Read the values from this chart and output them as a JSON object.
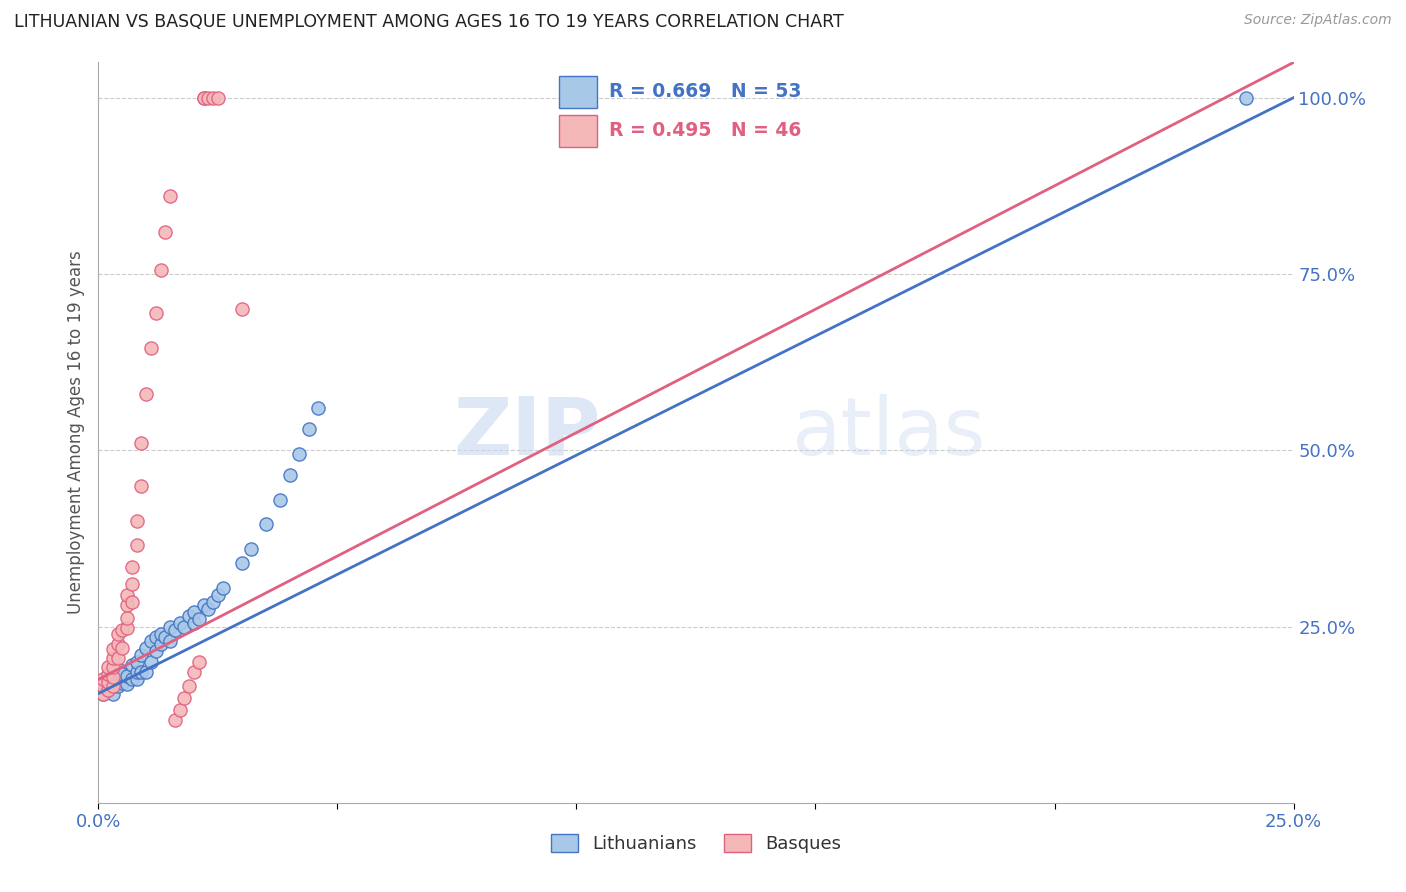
{
  "title": "LITHUANIAN VS BASQUE UNEMPLOYMENT AMONG AGES 16 TO 19 YEARS CORRELATION CHART",
  "source": "Source: ZipAtlas.com",
  "ylabel": "Unemployment Among Ages 16 to 19 years",
  "xlim": [
    0.0,
    0.25
  ],
  "ylim": [
    0.0,
    1.05
  ],
  "x_ticks": [
    0.0,
    0.05,
    0.1,
    0.15,
    0.2,
    0.25
  ],
  "x_tick_labels": [
    "0.0%",
    "",
    "",
    "",
    "",
    "25.0%"
  ],
  "y_ticks": [
    0.25,
    0.5,
    0.75,
    1.0
  ],
  "y_tick_labels": [
    "25.0%",
    "50.0%",
    "75.0%",
    "100.0%"
  ],
  "watermark_zip": "ZIP",
  "watermark_atlas": "atlas",
  "legend_blue_R": "R = 0.669",
  "legend_blue_N": "N = 53",
  "legend_pink_R": "R = 0.495",
  "legend_pink_N": "N = 46",
  "blue_color": "#a8c8e8",
  "pink_color": "#f4b8b8",
  "blue_line_color": "#4472c4",
  "pink_line_color": "#e06080",
  "title_color": "#222222",
  "axis_label_color": "#4472c4",
  "grid_color": "#cccccc",
  "blue_scatter_x": [
    0.001,
    0.001,
    0.002,
    0.002,
    0.003,
    0.003,
    0.003,
    0.004,
    0.004,
    0.004,
    0.005,
    0.005,
    0.006,
    0.006,
    0.007,
    0.007,
    0.008,
    0.008,
    0.008,
    0.009,
    0.009,
    0.01,
    0.01,
    0.011,
    0.011,
    0.012,
    0.012,
    0.013,
    0.013,
    0.014,
    0.015,
    0.015,
    0.016,
    0.017,
    0.018,
    0.019,
    0.02,
    0.02,
    0.021,
    0.022,
    0.023,
    0.024,
    0.025,
    0.026,
    0.03,
    0.032,
    0.035,
    0.038,
    0.04,
    0.042,
    0.044,
    0.046,
    0.24
  ],
  "blue_scatter_y": [
    0.155,
    0.17,
    0.16,
    0.175,
    0.155,
    0.165,
    0.18,
    0.165,
    0.178,
    0.19,
    0.17,
    0.182,
    0.168,
    0.18,
    0.175,
    0.195,
    0.175,
    0.185,
    0.2,
    0.185,
    0.21,
    0.185,
    0.22,
    0.2,
    0.23,
    0.215,
    0.235,
    0.225,
    0.24,
    0.235,
    0.23,
    0.25,
    0.245,
    0.255,
    0.25,
    0.265,
    0.255,
    0.27,
    0.26,
    0.28,
    0.275,
    0.285,
    0.295,
    0.305,
    0.34,
    0.36,
    0.395,
    0.43,
    0.465,
    0.495,
    0.53,
    0.56,
    1.0
  ],
  "pink_scatter_x": [
    0.001,
    0.001,
    0.001,
    0.002,
    0.002,
    0.002,
    0.002,
    0.003,
    0.003,
    0.003,
    0.003,
    0.003,
    0.004,
    0.004,
    0.004,
    0.005,
    0.005,
    0.006,
    0.006,
    0.006,
    0.006,
    0.007,
    0.007,
    0.007,
    0.008,
    0.008,
    0.009,
    0.009,
    0.01,
    0.011,
    0.012,
    0.013,
    0.014,
    0.015,
    0.016,
    0.017,
    0.018,
    0.019,
    0.02,
    0.021,
    0.022,
    0.022,
    0.023,
    0.024,
    0.025,
    0.03
  ],
  "pink_scatter_y": [
    0.155,
    0.165,
    0.175,
    0.16,
    0.172,
    0.182,
    0.192,
    0.165,
    0.178,
    0.192,
    0.205,
    0.218,
    0.205,
    0.225,
    0.24,
    0.22,
    0.245,
    0.248,
    0.262,
    0.28,
    0.295,
    0.285,
    0.31,
    0.335,
    0.365,
    0.4,
    0.45,
    0.51,
    0.58,
    0.645,
    0.695,
    0.755,
    0.81,
    0.86,
    0.118,
    0.132,
    0.148,
    0.165,
    0.185,
    0.2,
    1.0,
    1.0,
    1.0,
    1.0,
    1.0,
    0.7
  ],
  "blue_line_x": [
    0.0,
    0.25
  ],
  "blue_line_y": [
    0.155,
    1.0
  ],
  "pink_line_x": [
    0.0,
    0.25
  ],
  "pink_line_y": [
    0.175,
    1.05
  ]
}
